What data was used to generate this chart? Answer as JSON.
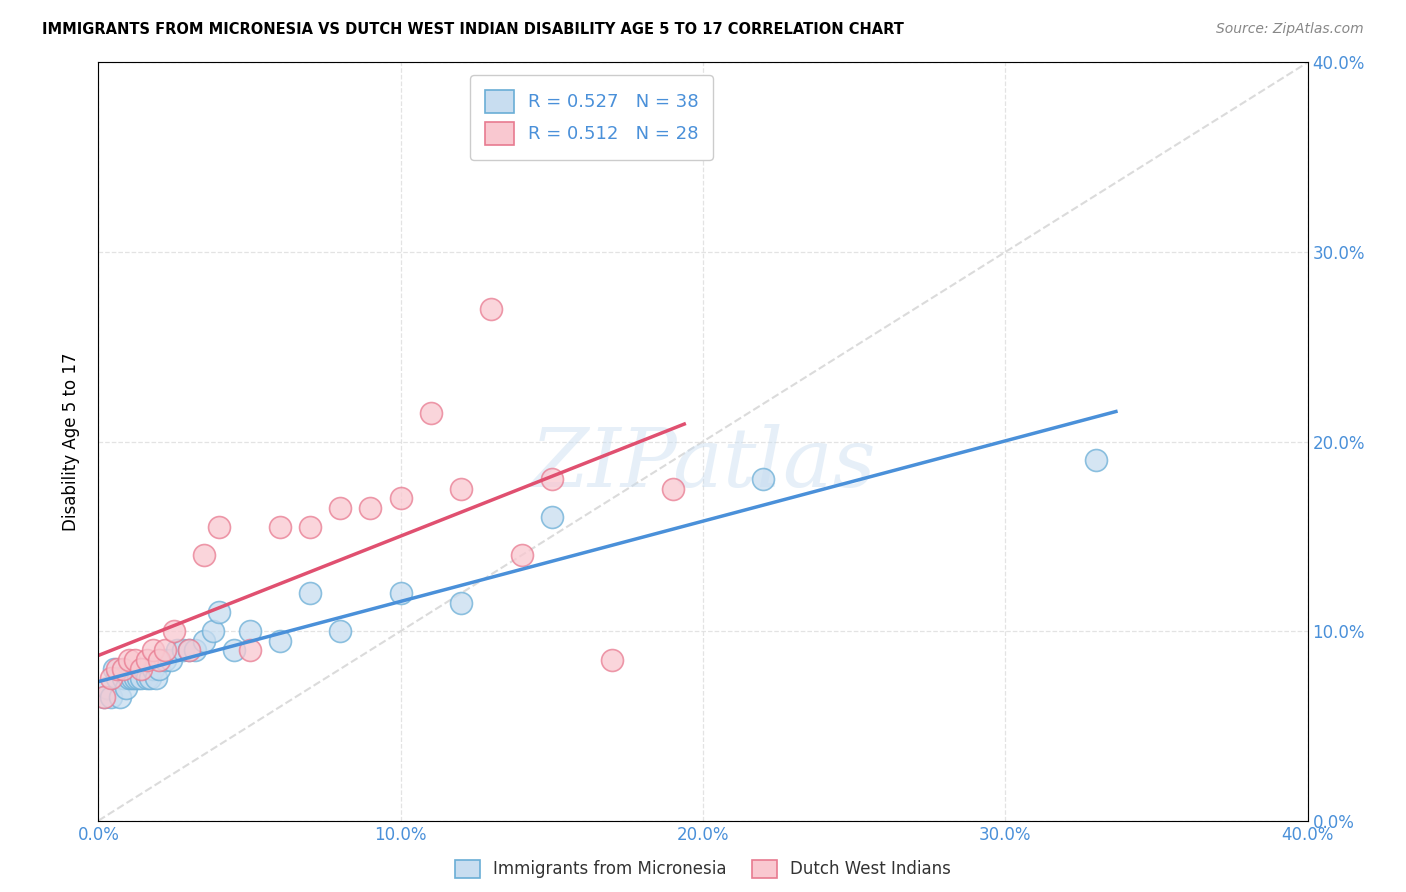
{
  "title": "IMMIGRANTS FROM MICRONESIA VS DUTCH WEST INDIAN DISABILITY AGE 5 TO 17 CORRELATION CHART",
  "source": "Source: ZipAtlas.com",
  "ylabel": "Disability Age 5 to 17",
  "xlim": [
    0.0,
    0.4
  ],
  "ylim": [
    0.0,
    0.4
  ],
  "yticks": [
    0.0,
    0.1,
    0.2,
    0.3,
    0.4
  ],
  "xticks": [
    0.0,
    0.1,
    0.2,
    0.3,
    0.4
  ],
  "blue_R": 0.527,
  "blue_N": 38,
  "pink_R": 0.512,
  "pink_N": 28,
  "blue_face_color": "#c8ddf0",
  "blue_edge_color": "#6aaed6",
  "pink_face_color": "#f9c8d0",
  "pink_edge_color": "#e87a90",
  "blue_line_color": "#4a90d9",
  "pink_line_color": "#e05070",
  "diag_line_color": "#cccccc",
  "legend_label_blue": "Immigrants from Micronesia",
  "legend_label_pink": "Dutch West Indians",
  "watermark": "ZIPatlas",
  "blue_scatter_x": [
    0.002,
    0.003,
    0.004,
    0.005,
    0.006,
    0.007,
    0.008,
    0.009,
    0.01,
    0.011,
    0.012,
    0.013,
    0.014,
    0.015,
    0.016,
    0.017,
    0.018,
    0.019,
    0.02,
    0.022,
    0.024,
    0.026,
    0.028,
    0.03,
    0.032,
    0.035,
    0.038,
    0.04,
    0.045,
    0.05,
    0.06,
    0.07,
    0.08,
    0.1,
    0.12,
    0.15,
    0.22,
    0.33
  ],
  "blue_scatter_y": [
    0.065,
    0.07,
    0.065,
    0.08,
    0.075,
    0.065,
    0.075,
    0.07,
    0.075,
    0.075,
    0.075,
    0.075,
    0.075,
    0.08,
    0.075,
    0.075,
    0.08,
    0.075,
    0.08,
    0.085,
    0.085,
    0.09,
    0.09,
    0.09,
    0.09,
    0.095,
    0.1,
    0.11,
    0.09,
    0.1,
    0.095,
    0.12,
    0.1,
    0.12,
    0.115,
    0.16,
    0.18,
    0.19
  ],
  "pink_scatter_x": [
    0.002,
    0.004,
    0.006,
    0.008,
    0.01,
    0.012,
    0.014,
    0.016,
    0.018,
    0.02,
    0.022,
    0.025,
    0.03,
    0.035,
    0.04,
    0.05,
    0.06,
    0.07,
    0.08,
    0.09,
    0.1,
    0.11,
    0.12,
    0.13,
    0.14,
    0.15,
    0.17,
    0.19
  ],
  "pink_scatter_y": [
    0.065,
    0.075,
    0.08,
    0.08,
    0.085,
    0.085,
    0.08,
    0.085,
    0.09,
    0.085,
    0.09,
    0.1,
    0.09,
    0.14,
    0.155,
    0.09,
    0.155,
    0.155,
    0.165,
    0.165,
    0.17,
    0.215,
    0.175,
    0.27,
    0.14,
    0.18,
    0.085,
    0.175
  ]
}
